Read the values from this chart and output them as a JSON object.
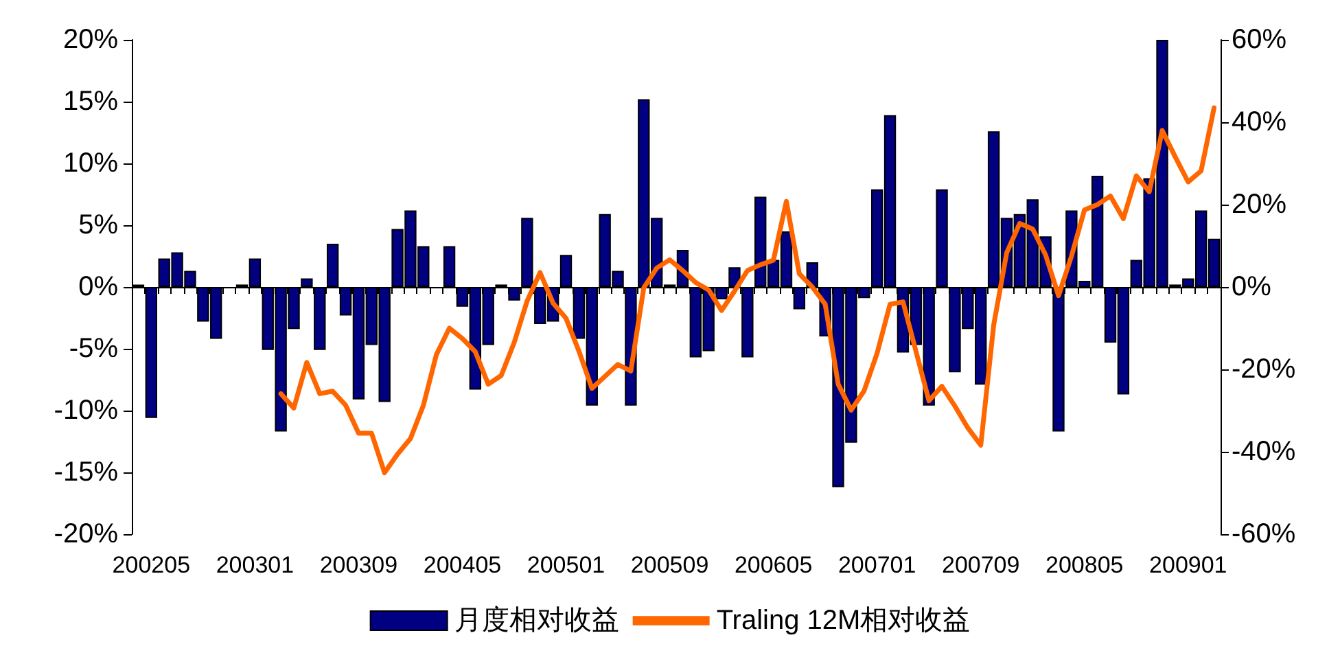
{
  "chart_data": {
    "type": "bar",
    "categories": [
      null,
      "200205",
      null,
      null,
      null,
      null,
      null,
      null,
      null,
      "200301",
      null,
      null,
      null,
      null,
      null,
      null,
      null,
      "200309",
      null,
      null,
      null,
      null,
      null,
      null,
      null,
      "200405",
      null,
      null,
      null,
      null,
      null,
      null,
      null,
      "200501",
      null,
      null,
      null,
      null,
      null,
      null,
      null,
      "200509",
      null,
      null,
      null,
      null,
      null,
      null,
      null,
      "200605",
      null,
      null,
      null,
      null,
      null,
      null,
      null,
      "200701",
      null,
      null,
      null,
      null,
      null,
      null,
      null,
      "200709",
      null,
      null,
      null,
      null,
      null,
      null,
      null,
      "200805",
      null,
      null,
      null,
      null,
      null,
      null,
      null,
      "200901",
      null,
      null
    ],
    "series": [
      {
        "name": "月度相对收益",
        "color": "#000080",
        "values": [
          0.2,
          -10.6,
          2.3,
          2.8,
          1.3,
          -2.8,
          -4.2,
          null,
          0.2,
          2.3,
          -5.1,
          -11.7,
          -3.4,
          0.7,
          -5.1,
          3.5,
          -2.3,
          -9.1,
          -4.7,
          -9.3,
          4.7,
          6.2,
          3.3,
          null,
          3.3,
          -1.6,
          -8.3,
          -4.7,
          0.2,
          -1.1,
          5.6,
          -3.0,
          -2.8,
          2.6,
          -4.2,
          -9.6,
          5.9,
          1.3,
          -9.6,
          15.2,
          5.6,
          0.2,
          3.0,
          -5.7,
          -5.2,
          -1.0,
          1.6,
          -5.7,
          7.3,
          2.2,
          4.5,
          -1.8,
          2.0,
          -4.0,
          -16.2,
          -12.6,
          -0.9,
          7.9,
          13.9,
          -5.3,
          -4.7,
          -9.6,
          7.9,
          -6.9,
          -3.4,
          -7.9,
          12.6,
          5.6,
          5.9,
          7.1,
          4.1,
          -11.7,
          6.2,
          0.5,
          9.0,
          -4.5,
          -8.7,
          2.2,
          8.8,
          20,
          0.2,
          0.7,
          6.2,
          3.9
        ]
      },
      {
        "name": "Traling 12M相对收益",
        "type": "line",
        "axis": "y2",
        "color": "#ff6600",
        "values": [
          null,
          null,
          null,
          null,
          null,
          null,
          null,
          null,
          null,
          null,
          null,
          -25.9,
          -29.4,
          -18.3,
          -25.9,
          -25.3,
          -28.7,
          -35.5,
          -35.5,
          -45.1,
          -40.6,
          -36.8,
          -28.7,
          -16.4,
          -10.0,
          -12.5,
          -15.7,
          -23.6,
          -21.5,
          -13.5,
          -3.4,
          3.5,
          -3.9,
          -7.6,
          -15.6,
          -24.6,
          -21.7,
          -18.8,
          -20.4,
          -0.2,
          4.6,
          6.6,
          4.0,
          1.1,
          -0.7,
          -5.7,
          -1.0,
          4.0,
          5.4,
          6.5,
          20.8,
          3.2,
          0,
          -4.2,
          -23.6,
          -29.9,
          -25.2,
          -16.1,
          -4.2,
          -3.6,
          -15.6,
          -27.6,
          -24.1,
          -28.9,
          -34.2,
          -38.4,
          -9.2,
          8.3,
          15.4,
          14.1,
          7.8,
          -2.1,
          7.5,
          18.7,
          20.0,
          22.1,
          16.6,
          27.0,
          23.1,
          38.0,
          31.6,
          25.5,
          28.2,
          43.5
        ]
      }
    ],
    "ylim": [
      -20,
      20
    ],
    "yticks": [
      {
        "value": -20,
        "label": "-20%"
      },
      {
        "value": -15,
        "label": "-15%"
      },
      {
        "value": -10,
        "label": "-10%"
      },
      {
        "value": -5,
        "label": "-5%"
      },
      {
        "value": 0,
        "label": "0%"
      },
      {
        "value": 5,
        "label": "5%"
      },
      {
        "value": 10,
        "label": "10%"
      },
      {
        "value": 15,
        "label": "15%"
      },
      {
        "value": 20,
        "label": "20%"
      }
    ],
    "y2lim": [
      -60,
      60
    ],
    "y2ticks": [
      {
        "value": -60,
        "label": "-60%"
      },
      {
        "value": -40,
        "label": "-40%"
      },
      {
        "value": -20,
        "label": "-20%"
      },
      {
        "value": 0,
        "label": "0%"
      },
      {
        "value": 20,
        "label": "20%"
      },
      {
        "value": 40,
        "label": "40%"
      },
      {
        "value": 60,
        "label": "60%"
      }
    ],
    "legend": "bottom",
    "marker": "none",
    "line_style": "solid"
  }
}
